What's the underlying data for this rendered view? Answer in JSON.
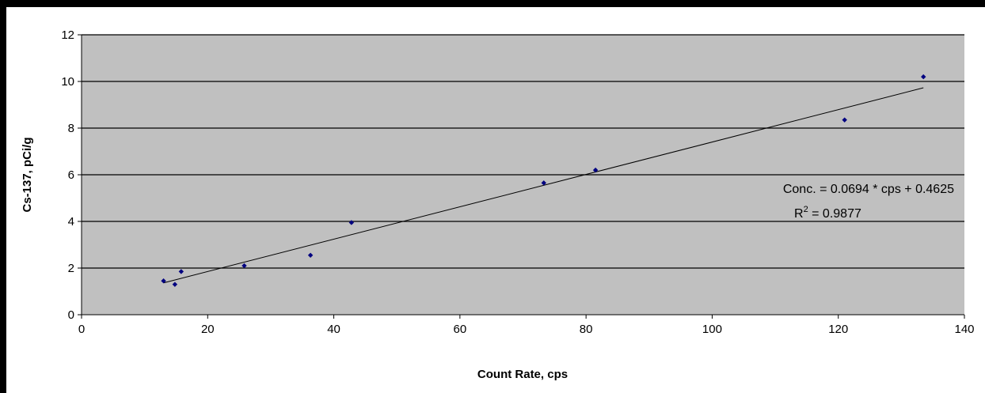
{
  "colors": {
    "frame": "#000000",
    "background": "#ffffff",
    "plot_area": "#c0c0c0",
    "gridline": "#000000",
    "marker": "#000080",
    "trendline": "#000000"
  },
  "chart_data": {
    "type": "scatter",
    "title": "",
    "xlabel": "Count Rate, cps",
    "ylabel": "Cs-137, pCi/g",
    "xlim": [
      0,
      140
    ],
    "ylim": [
      0,
      12
    ],
    "xticks": [
      0,
      20,
      40,
      60,
      80,
      100,
      120,
      140
    ],
    "yticks": [
      0,
      2,
      4,
      6,
      8,
      10,
      12
    ],
    "grid": "horizontal",
    "legend": "none",
    "series": [
      {
        "x": [
          13.0,
          14.8,
          15.8,
          25.8,
          36.3,
          42.8,
          73.3,
          81.5,
          121.0,
          133.5
        ],
        "y": [
          1.45,
          1.3,
          1.85,
          2.1,
          2.55,
          3.95,
          5.65,
          6.2,
          8.35,
          10.2
        ]
      }
    ],
    "trendline": {
      "type": "linear",
      "slope": 0.0694,
      "intercept": 0.4625,
      "x_range": [
        13.0,
        133.5
      ],
      "r_squared": 0.9877
    },
    "annotations": {
      "equation": "Conc. = 0.0694 * cps + 0.4625",
      "r2_label": "R",
      "r2_superscript": "2",
      "r2_value": " = 0.9877"
    }
  }
}
